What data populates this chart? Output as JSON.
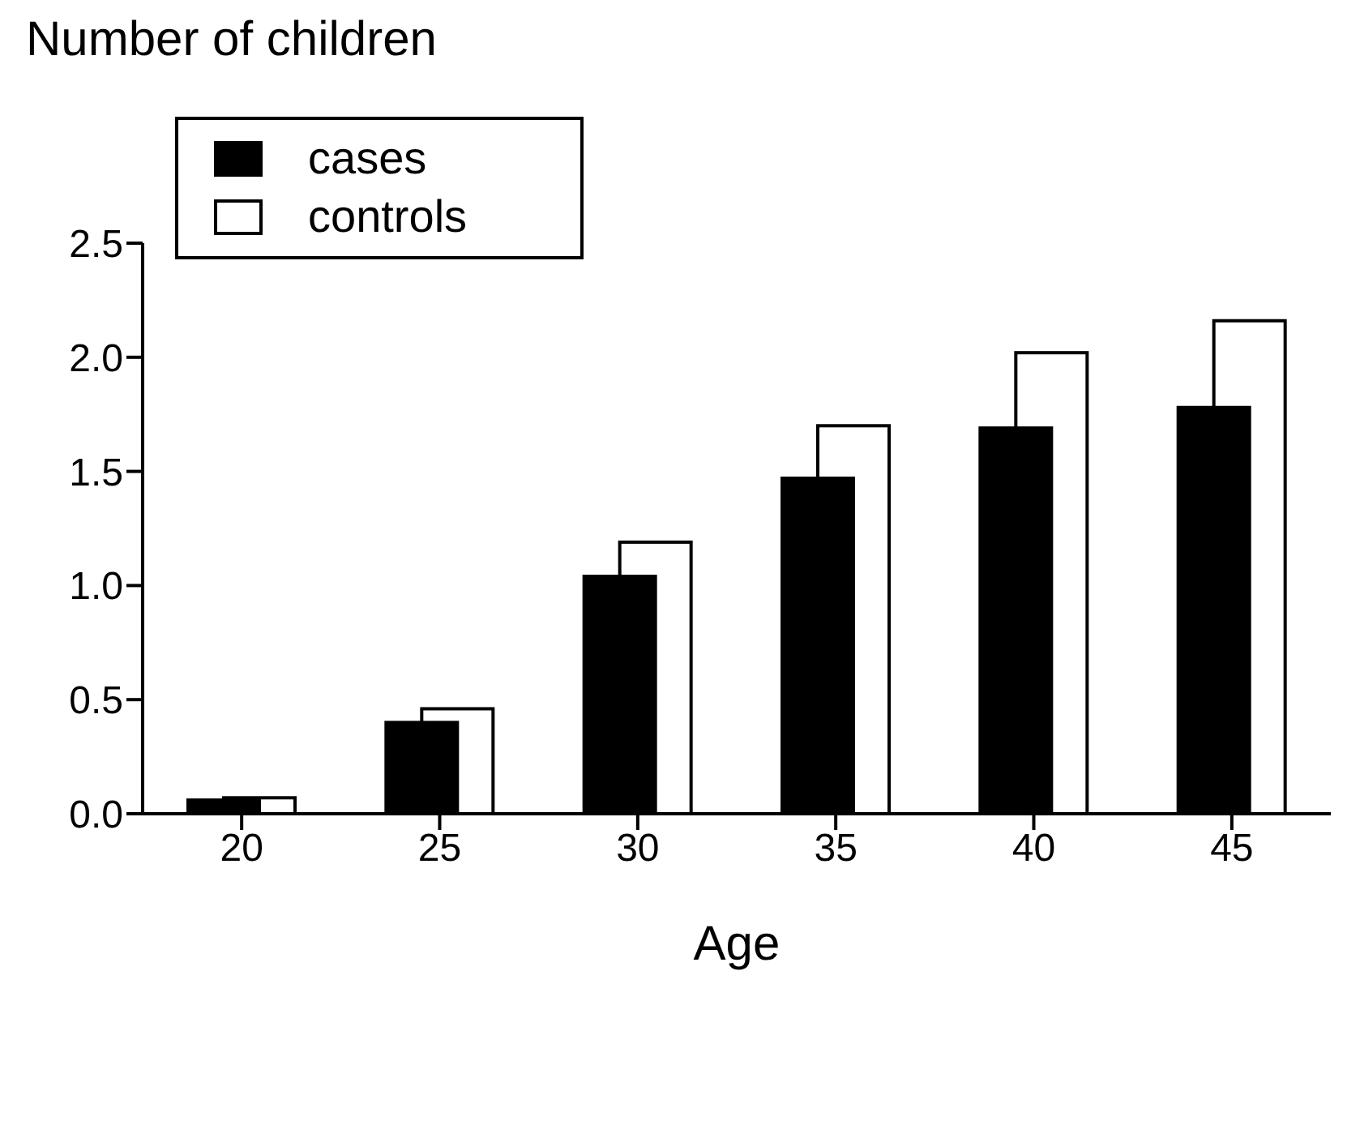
{
  "chart_data": {
    "type": "bar",
    "title": "Number of children",
    "xlabel": "Age",
    "categories": [
      "20",
      "25",
      "30",
      "35",
      "40",
      "45"
    ],
    "series": [
      {
        "name": "cases",
        "color": "#000000",
        "values": [
          0.06,
          0.4,
          1.04,
          1.47,
          1.69,
          1.78
        ]
      },
      {
        "name": "controls",
        "color": "#ffffff",
        "values": [
          0.07,
          0.46,
          1.19,
          1.7,
          2.02,
          2.16
        ]
      }
    ],
    "ylim": [
      0,
      2.5
    ],
    "yticks": [
      {
        "value": 0,
        "label": "0.0"
      },
      {
        "value": 0.5,
        "label": "0.5"
      },
      {
        "value": 1,
        "label": "1.0"
      },
      {
        "value": 1.5,
        "label": "1.5"
      },
      {
        "value": 2,
        "label": "2.0"
      },
      {
        "value": 2.5,
        "label": "2.5"
      }
    ],
    "grid": false,
    "legend": "top left"
  }
}
